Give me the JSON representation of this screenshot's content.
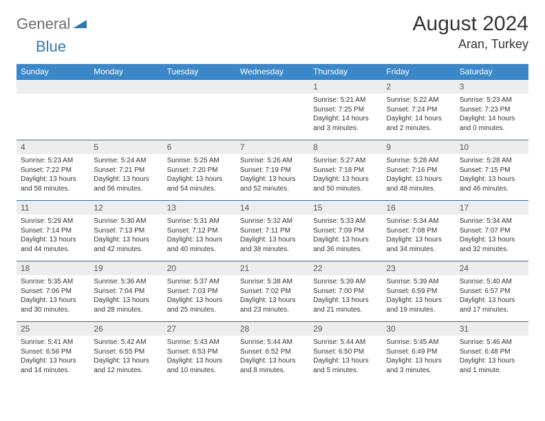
{
  "brand": {
    "text1": "General",
    "text2": "Blue"
  },
  "title": "August 2024",
  "location": "Aran, Turkey",
  "colors": {
    "header_bg": "#3b87c8",
    "header_text": "#ffffff",
    "daynum_bg": "#ededed",
    "border": "#3b6a94",
    "brand_gray": "#6b6b6b",
    "brand_blue": "#2a7ab8"
  },
  "weekdays": [
    "Sunday",
    "Monday",
    "Tuesday",
    "Wednesday",
    "Thursday",
    "Friday",
    "Saturday"
  ],
  "weeks": [
    [
      {
        "n": "",
        "lines": [
          "",
          "",
          "",
          ""
        ]
      },
      {
        "n": "",
        "lines": [
          "",
          "",
          "",
          ""
        ]
      },
      {
        "n": "",
        "lines": [
          "",
          "",
          "",
          ""
        ]
      },
      {
        "n": "",
        "lines": [
          "",
          "",
          "",
          ""
        ]
      },
      {
        "n": "1",
        "lines": [
          "Sunrise: 5:21 AM",
          "Sunset: 7:25 PM",
          "Daylight: 14 hours",
          "and 3 minutes."
        ]
      },
      {
        "n": "2",
        "lines": [
          "Sunrise: 5:22 AM",
          "Sunset: 7:24 PM",
          "Daylight: 14 hours",
          "and 2 minutes."
        ]
      },
      {
        "n": "3",
        "lines": [
          "Sunrise: 5:23 AM",
          "Sunset: 7:23 PM",
          "Daylight: 14 hours",
          "and 0 minutes."
        ]
      }
    ],
    [
      {
        "n": "4",
        "lines": [
          "Sunrise: 5:23 AM",
          "Sunset: 7:22 PM",
          "Daylight: 13 hours",
          "and 58 minutes."
        ]
      },
      {
        "n": "5",
        "lines": [
          "Sunrise: 5:24 AM",
          "Sunset: 7:21 PM",
          "Daylight: 13 hours",
          "and 56 minutes."
        ]
      },
      {
        "n": "6",
        "lines": [
          "Sunrise: 5:25 AM",
          "Sunset: 7:20 PM",
          "Daylight: 13 hours",
          "and 54 minutes."
        ]
      },
      {
        "n": "7",
        "lines": [
          "Sunrise: 5:26 AM",
          "Sunset: 7:19 PM",
          "Daylight: 13 hours",
          "and 52 minutes."
        ]
      },
      {
        "n": "8",
        "lines": [
          "Sunrise: 5:27 AM",
          "Sunset: 7:18 PM",
          "Daylight: 13 hours",
          "and 50 minutes."
        ]
      },
      {
        "n": "9",
        "lines": [
          "Sunrise: 5:28 AM",
          "Sunset: 7:16 PM",
          "Daylight: 13 hours",
          "and 48 minutes."
        ]
      },
      {
        "n": "10",
        "lines": [
          "Sunrise: 5:28 AM",
          "Sunset: 7:15 PM",
          "Daylight: 13 hours",
          "and 46 minutes."
        ]
      }
    ],
    [
      {
        "n": "11",
        "lines": [
          "Sunrise: 5:29 AM",
          "Sunset: 7:14 PM",
          "Daylight: 13 hours",
          "and 44 minutes."
        ]
      },
      {
        "n": "12",
        "lines": [
          "Sunrise: 5:30 AM",
          "Sunset: 7:13 PM",
          "Daylight: 13 hours",
          "and 42 minutes."
        ]
      },
      {
        "n": "13",
        "lines": [
          "Sunrise: 5:31 AM",
          "Sunset: 7:12 PM",
          "Daylight: 13 hours",
          "and 40 minutes."
        ]
      },
      {
        "n": "14",
        "lines": [
          "Sunrise: 5:32 AM",
          "Sunset: 7:11 PM",
          "Daylight: 13 hours",
          "and 38 minutes."
        ]
      },
      {
        "n": "15",
        "lines": [
          "Sunrise: 5:33 AM",
          "Sunset: 7:09 PM",
          "Daylight: 13 hours",
          "and 36 minutes."
        ]
      },
      {
        "n": "16",
        "lines": [
          "Sunrise: 5:34 AM",
          "Sunset: 7:08 PM",
          "Daylight: 13 hours",
          "and 34 minutes."
        ]
      },
      {
        "n": "17",
        "lines": [
          "Sunrise: 5:34 AM",
          "Sunset: 7:07 PM",
          "Daylight: 13 hours",
          "and 32 minutes."
        ]
      }
    ],
    [
      {
        "n": "18",
        "lines": [
          "Sunrise: 5:35 AM",
          "Sunset: 7:06 PM",
          "Daylight: 13 hours",
          "and 30 minutes."
        ]
      },
      {
        "n": "19",
        "lines": [
          "Sunrise: 5:36 AM",
          "Sunset: 7:04 PM",
          "Daylight: 13 hours",
          "and 28 minutes."
        ]
      },
      {
        "n": "20",
        "lines": [
          "Sunrise: 5:37 AM",
          "Sunset: 7:03 PM",
          "Daylight: 13 hours",
          "and 25 minutes."
        ]
      },
      {
        "n": "21",
        "lines": [
          "Sunrise: 5:38 AM",
          "Sunset: 7:02 PM",
          "Daylight: 13 hours",
          "and 23 minutes."
        ]
      },
      {
        "n": "22",
        "lines": [
          "Sunrise: 5:39 AM",
          "Sunset: 7:00 PM",
          "Daylight: 13 hours",
          "and 21 minutes."
        ]
      },
      {
        "n": "23",
        "lines": [
          "Sunrise: 5:39 AM",
          "Sunset: 6:59 PM",
          "Daylight: 13 hours",
          "and 19 minutes."
        ]
      },
      {
        "n": "24",
        "lines": [
          "Sunrise: 5:40 AM",
          "Sunset: 6:57 PM",
          "Daylight: 13 hours",
          "and 17 minutes."
        ]
      }
    ],
    [
      {
        "n": "25",
        "lines": [
          "Sunrise: 5:41 AM",
          "Sunset: 6:56 PM",
          "Daylight: 13 hours",
          "and 14 minutes."
        ]
      },
      {
        "n": "26",
        "lines": [
          "Sunrise: 5:42 AM",
          "Sunset: 6:55 PM",
          "Daylight: 13 hours",
          "and 12 minutes."
        ]
      },
      {
        "n": "27",
        "lines": [
          "Sunrise: 5:43 AM",
          "Sunset: 6:53 PM",
          "Daylight: 13 hours",
          "and 10 minutes."
        ]
      },
      {
        "n": "28",
        "lines": [
          "Sunrise: 5:44 AM",
          "Sunset: 6:52 PM",
          "Daylight: 13 hours",
          "and 8 minutes."
        ]
      },
      {
        "n": "29",
        "lines": [
          "Sunrise: 5:44 AM",
          "Sunset: 6:50 PM",
          "Daylight: 13 hours",
          "and 5 minutes."
        ]
      },
      {
        "n": "30",
        "lines": [
          "Sunrise: 5:45 AM",
          "Sunset: 6:49 PM",
          "Daylight: 13 hours",
          "and 3 minutes."
        ]
      },
      {
        "n": "31",
        "lines": [
          "Sunrise: 5:46 AM",
          "Sunset: 6:48 PM",
          "Daylight: 13 hours",
          "and 1 minute."
        ]
      }
    ]
  ]
}
